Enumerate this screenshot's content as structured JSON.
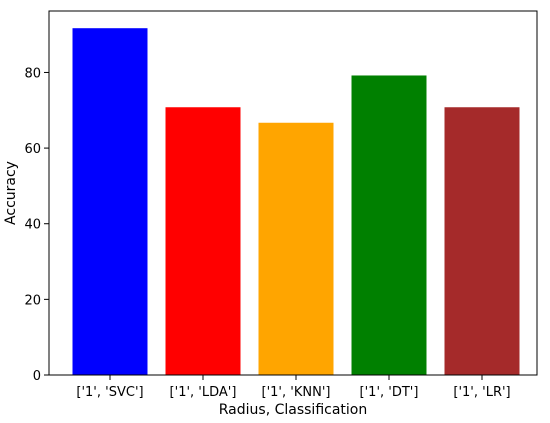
{
  "chart_data": {
    "type": "bar",
    "categories": [
      "['1', 'SVC']",
      "['1', 'LDA']",
      "['1', 'KNN']",
      "['1', 'DT']",
      "['1', 'LR']"
    ],
    "values": [
      91.7,
      70.8,
      66.7,
      79.2,
      70.8
    ],
    "colors": [
      "#0000ff",
      "#ff0000",
      "#ffa500",
      "#008000",
      "#a52a2a"
    ],
    "title": "",
    "xlabel": "Radius, Classification",
    "ylabel": "Accuracy",
    "ylim": [
      0,
      96.25
    ],
    "yticks": [
      0,
      20,
      40,
      60,
      80
    ],
    "grid": false,
    "legend": "none"
  }
}
